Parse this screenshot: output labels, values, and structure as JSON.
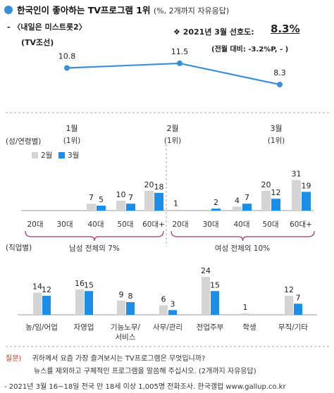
{
  "header": {
    "title": "한국인이 좋아하는 TV프로그램 1위",
    "title_note": "(%, 2개까지 자유응답)",
    "program_line1": "- 〈내일은 미스트롯2〉",
    "program_line2": "(TV조선)",
    "preference_label": "❖ 2021년 3월 선호도:",
    "preference_value": "8.3%",
    "change_text": "(전월 대비: -3.2%P, - )"
  },
  "sections": {
    "age_gender_label": "(성/연령별)",
    "occupation_label": "(직업별)",
    "male_total": "남성 전체의 7%",
    "female_total": "여성 전체의 10%"
  },
  "footer": {
    "question_label": "질문)",
    "question_line1": "귀하께서 요즘 가장 즐겨보시는 TV프로그램은 무엇입니까?",
    "question_line2": "뉴스를 제외하고 구체적인 프로그램을 말씀해 주십시오. (2개까지 자유응답)",
    "source": "- 2021년 3월 16~18일 전국 만 18세 이상 1,005명 전화조사. 한국갤럽 www.gallup.co.kr"
  },
  "chart_data": [
    {
      "type": "line",
      "x": [
        "1월 (1위)",
        "2월 (1위)",
        "3월 (1위)"
      ],
      "values": [
        10.8,
        11.5,
        8.3
      ],
      "color": "#3a8fd8",
      "month_labels": [
        "1월",
        "2월",
        "3월"
      ],
      "rank_labels": [
        "(1위)",
        "(1위)",
        "(1위)"
      ]
    },
    {
      "type": "bar",
      "categories": [
        "20대",
        "30대",
        "40대",
        "50대",
        "60대+",
        "20대",
        "30대",
        "40대",
        "50대",
        "60대+"
      ],
      "series": [
        {
          "name": "2월",
          "color": "#d4d4d4",
          "values": [
            null,
            null,
            7,
            10,
            20,
            1,
            null,
            4,
            20,
            31
          ]
        },
        {
          "name": "3월",
          "color": "#1a8ee8",
          "values": [
            null,
            null,
            5,
            7,
            18,
            null,
            2,
            7,
            12,
            19
          ]
        }
      ],
      "groups": [
        "남성 전체의 7%",
        "여성 전체의 10%"
      ]
    },
    {
      "type": "bar",
      "categories": [
        "농/임/어업",
        "자영업",
        "기능노무/서비스",
        "사무/관리",
        "전업주부",
        "학생",
        "무직/기타"
      ],
      "category_lines": [
        [
          "농/임/어업"
        ],
        [
          "자영업"
        ],
        [
          "기능노무/",
          "서비스"
        ],
        [
          "사무/관리"
        ],
        [
          "전업주부"
        ],
        [
          "학생"
        ],
        [
          "무직/기타"
        ]
      ],
      "series": [
        {
          "name": "2월",
          "color": "#d4d4d4",
          "values": [
            14,
            16,
            9,
            6,
            24,
            1,
            12
          ]
        },
        {
          "name": "3월",
          "color": "#1a8ee8",
          "values": [
            12,
            15,
            8,
            3,
            15,
            null,
            7
          ]
        }
      ]
    }
  ]
}
